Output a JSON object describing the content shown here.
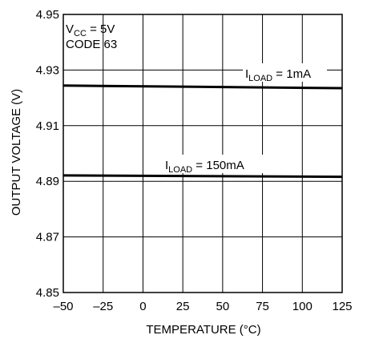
{
  "chart_data": {
    "type": "line",
    "xlabel": "TEMPERATURE (°C)",
    "ylabel": "OUTPUT VOLTAGE (V)",
    "xlim": [
      -50,
      125
    ],
    "ylim": [
      4.85,
      4.95
    ],
    "x_ticks": [
      -50,
      -25,
      0,
      25,
      50,
      75,
      100,
      125
    ],
    "x_tick_labels": [
      "–50",
      "–25",
      "0",
      "25",
      "50",
      "75",
      "100",
      "125"
    ],
    "y_ticks": [
      4.85,
      4.87,
      4.89,
      4.91,
      4.93,
      4.95
    ],
    "y_tick_labels": [
      "4.85",
      "4.87",
      "4.89",
      "4.91",
      "4.93",
      "4.95"
    ],
    "grid": true,
    "conditions": {
      "vcc_main": "V",
      "vcc_sub": "CC",
      "vcc_value": " = 5V",
      "code": "CODE 63"
    },
    "series": [
      {
        "label_main": "I",
        "label_sub": "LOAD",
        "label_value": " = 1mA",
        "x": [
          -50,
          125
        ],
        "y": [
          4.9244,
          4.9235
        ]
      },
      {
        "label_main": "I",
        "label_sub": "LOAD",
        "label_value": " = 150mA",
        "x": [
          -50,
          125
        ],
        "y": [
          4.8921,
          4.8916
        ]
      }
    ]
  }
}
